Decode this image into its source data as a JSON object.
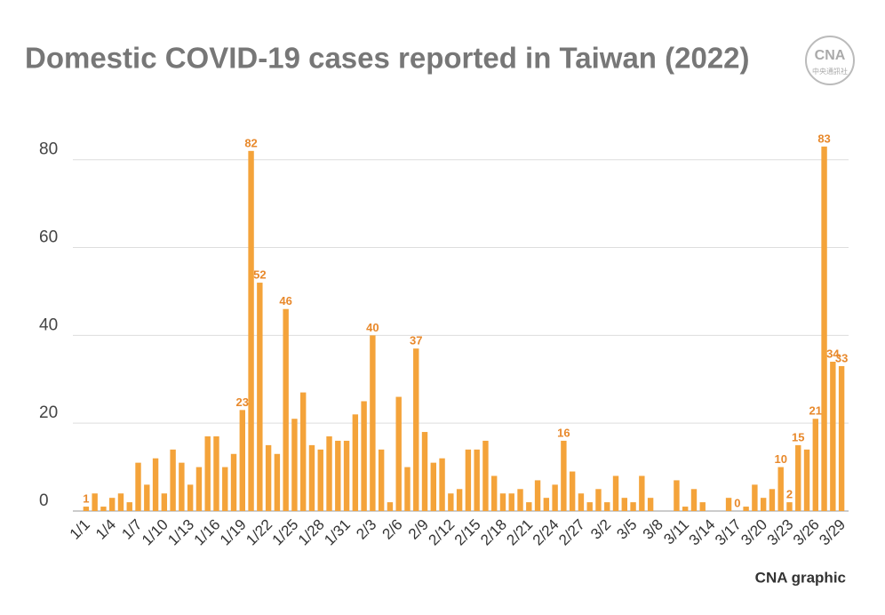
{
  "chart_data": {
    "type": "bar",
    "title": "Domestic COVID-19 cases reported in Taiwan (2022)",
    "source": "CNA graphic",
    "logo": {
      "text": "CNA",
      "subtext": "中央通訊社"
    },
    "color": "#f4a33a",
    "label_color": "#e8892c",
    "grid": true,
    "ylim": [
      0,
      85
    ],
    "yticks": [
      0,
      20,
      40,
      60,
      80
    ],
    "categories": [
      "1/1",
      null,
      null,
      "1/4",
      null,
      null,
      "1/7",
      null,
      null,
      "1/10",
      null,
      null,
      "1/13",
      null,
      null,
      "1/16",
      null,
      null,
      "1/19",
      null,
      null,
      "1/22",
      null,
      null,
      "1/25",
      null,
      null,
      "1/28",
      null,
      null,
      "1/31",
      null,
      null,
      "2/3",
      null,
      null,
      "2/6",
      null,
      null,
      "2/9",
      null,
      null,
      "2/12",
      null,
      null,
      "2/15",
      null,
      null,
      "2/18",
      null,
      null,
      "2/21",
      null,
      null,
      "2/24",
      null,
      null,
      "2/27",
      null,
      null,
      "3/2",
      null,
      null,
      "3/5",
      null,
      null,
      "3/8",
      null,
      null,
      "3/11",
      null,
      null,
      "3/14",
      null,
      null,
      "3/17",
      null,
      null,
      "3/20",
      null,
      null,
      "3/23",
      null,
      null,
      "3/26",
      null,
      null,
      "3/29"
    ],
    "values": [
      1,
      4,
      1,
      3,
      4,
      2,
      11,
      6,
      12,
      4,
      14,
      11,
      6,
      10,
      17,
      17,
      10,
      13,
      23,
      82,
      52,
      15,
      13,
      46,
      21,
      27,
      15,
      14,
      17,
      16,
      16,
      22,
      25,
      40,
      14,
      2,
      26,
      10,
      37,
      18,
      11,
      12,
      4,
      5,
      14,
      14,
      16,
      8,
      4,
      4,
      5,
      2,
      7,
      3,
      6,
      16,
      9,
      4,
      2,
      5,
      2,
      8,
      3,
      2,
      8,
      3,
      0,
      0,
      7,
      1,
      5,
      2,
      0,
      0,
      3,
      0,
      1,
      6,
      3,
      5,
      10,
      2,
      15,
      14,
      21,
      83,
      34,
      33
    ],
    "value_labels": [
      "1",
      null,
      null,
      null,
      null,
      null,
      null,
      null,
      null,
      null,
      null,
      null,
      null,
      null,
      null,
      null,
      null,
      null,
      "23",
      "82",
      "52",
      null,
      null,
      "46",
      null,
      null,
      null,
      null,
      null,
      null,
      null,
      null,
      null,
      "40",
      null,
      null,
      null,
      null,
      "37",
      null,
      null,
      null,
      null,
      null,
      null,
      null,
      null,
      null,
      null,
      null,
      null,
      null,
      null,
      null,
      null,
      "16",
      null,
      null,
      null,
      null,
      null,
      null,
      null,
      null,
      null,
      null,
      null,
      null,
      null,
      null,
      null,
      null,
      null,
      null,
      null,
      "0",
      null,
      null,
      null,
      null,
      "10",
      "2",
      "15",
      null,
      "21",
      "83",
      "34",
      "33"
    ]
  }
}
